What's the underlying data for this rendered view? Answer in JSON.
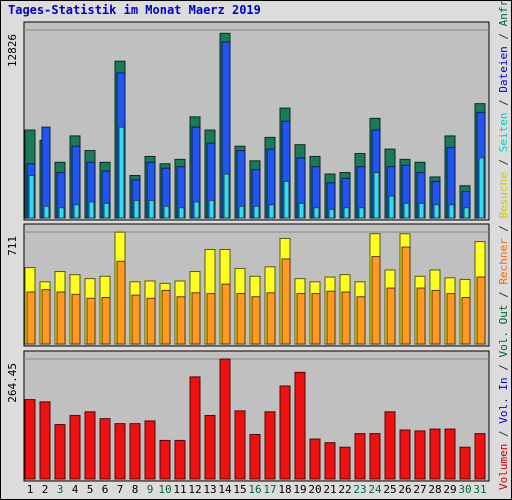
{
  "chart_data": [
    {
      "type": "bar",
      "title": "Tages-Statistik im Monat Maerz 2019",
      "ymax_label": "12826",
      "ylim": [
        0,
        12826
      ],
      "categories": [
        "1",
        "2",
        "3",
        "4",
        "5",
        "6",
        "7",
        "8",
        "9",
        "10",
        "11",
        "12",
        "13",
        "14",
        "15",
        "16",
        "17",
        "18",
        "19",
        "20",
        "21",
        "22",
        "23",
        "24",
        "25",
        "26",
        "27",
        "28",
        "29",
        "30",
        "31"
      ],
      "day_colors": [
        "#000000",
        "#000000",
        "#006633",
        "#000000",
        "#000000",
        "#000000",
        "#000000",
        "#000000",
        "#006633",
        "#006633",
        "#000000",
        "#000000",
        "#000000",
        "#000000",
        "#000000",
        "#006633",
        "#006633",
        "#000000",
        "#000000",
        "#000000",
        "#000000",
        "#000000",
        "#006633",
        "#006633",
        "#000000",
        "#000000",
        "#000000",
        "#000000",
        "#000000",
        "#006633",
        "#006633"
      ],
      "series": [
        {
          "name": "Anfragen",
          "color": "#1a7a5a",
          "values": [
            6000,
            5300,
            3800,
            5600,
            4600,
            3800,
            10700,
            2900,
            4200,
            3700,
            4000,
            6900,
            6000,
            12600,
            4900,
            3900,
            5500,
            7500,
            5000,
            4200,
            3000,
            3100,
            4400,
            6800,
            4700,
            4000,
            3800,
            2800,
            5600,
            2200,
            7800
          ]
        },
        {
          "name": "Dateien",
          "color": "#2255ee",
          "values": [
            3700,
            6200,
            3100,
            4900,
            3800,
            3200,
            9900,
            2600,
            3800,
            3400,
            3500,
            6200,
            5100,
            12000,
            4600,
            3300,
            4700,
            6600,
            4100,
            3500,
            2400,
            2700,
            3500,
            6000,
            3500,
            3600,
            3100,
            2500,
            4800,
            1800,
            7200
          ]
        },
        {
          "name": "Seiten",
          "color": "#33ddee",
          "values": [
            2900,
            800,
            700,
            900,
            1100,
            1000,
            6200,
            1200,
            1200,
            800,
            700,
            1100,
            1200,
            3000,
            800,
            800,
            900,
            2500,
            1000,
            700,
            600,
            700,
            700,
            3100,
            1500,
            1000,
            1000,
            900,
            900,
            700,
            4100
          ]
        }
      ]
    },
    {
      "type": "bar",
      "ymax_label": "711",
      "ylim": [
        0,
        711
      ],
      "series": [
        {
          "name": "Besuche",
          "color": "#ffff22",
          "values": [
            485,
            395,
            460,
            440,
            415,
            430,
            710,
            395,
            400,
            385,
            400,
            460,
            600,
            600,
            480,
            430,
            490,
            670,
            415,
            395,
            425,
            440,
            395,
            700,
            470,
            700,
            430,
            470,
            420,
            410,
            650
          ]
        },
        {
          "name": "Rechner",
          "color": "#ff9922",
          "values": [
            330,
            345,
            330,
            315,
            290,
            295,
            525,
            310,
            290,
            340,
            300,
            325,
            320,
            380,
            320,
            300,
            325,
            540,
            320,
            320,
            335,
            330,
            300,
            555,
            355,
            615,
            355,
            340,
            320,
            295,
            425
          ]
        }
      ]
    },
    {
      "type": "bar",
      "ymax_label": "264.45",
      "ylim": [
        0,
        264.45
      ],
      "series": [
        {
          "name": "Volumen",
          "color": "#ee1111",
          "values": [
            175,
            170,
            120,
            140,
            148,
            133,
            122,
            122,
            128,
            85,
            85,
            225,
            140,
            268,
            150,
            98,
            148,
            205,
            235,
            88,
            80,
            70,
            100,
            100,
            148,
            108,
            106,
            110,
            110,
            70,
            100
          ]
        }
      ]
    }
  ],
  "right_legend": [
    {
      "text": "Volumen",
      "color": "#cc0000"
    },
    {
      "text": " / ",
      "color": "#333333"
    },
    {
      "text": "Vol. In",
      "color": "#0000cc"
    },
    {
      "text": " / ",
      "color": "#333333"
    },
    {
      "text": "Vol. Out",
      "color": "#006633"
    },
    {
      "text": " / ",
      "color": "#333333"
    },
    {
      "text": "Rechner",
      "color": "#ff6600"
    },
    {
      "text": " / ",
      "color": "#333333"
    },
    {
      "text": "Besuche",
      "color": "#cccc00"
    },
    {
      "text": " / ",
      "color": "#333333"
    },
    {
      "text": "Seiten",
      "color": "#00cccc"
    },
    {
      "text": " / ",
      "color": "#333333"
    },
    {
      "text": "Dateien",
      "color": "#0000cc"
    },
    {
      "text": " / ",
      "color": "#333333"
    },
    {
      "text": "Anfragen",
      "color": "#006633"
    }
  ]
}
